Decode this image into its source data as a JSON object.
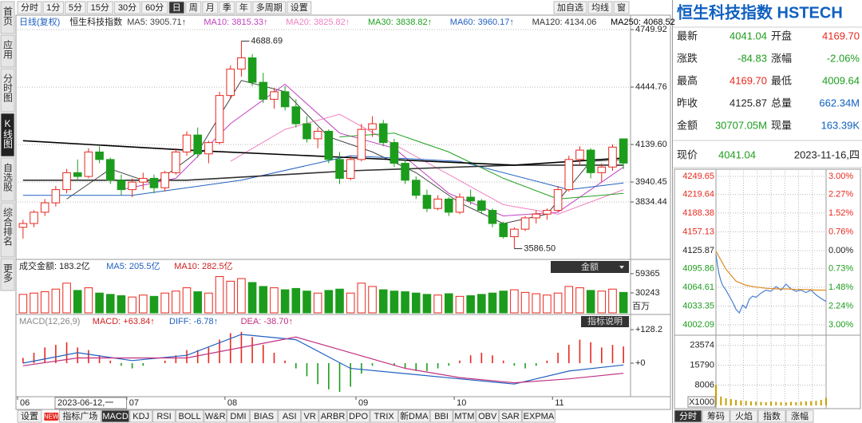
{
  "toolbar": {
    "items": [
      "分时",
      "1分",
      "5分",
      "15分",
      "30分",
      "60分",
      "日",
      "周",
      "月",
      "季",
      "年",
      "多周期",
      "设置"
    ],
    "active": 6,
    "right_items": [
      "加自选",
      "均线",
      "窗"
    ]
  },
  "sidebar": {
    "items": [
      "首页",
      "应用",
      "分时图",
      "K线图",
      "自选股",
      "综合排名",
      "更多"
    ],
    "active": 3
  },
  "cursor_date": "2023-06-12,一",
  "chart_data": [
    {
      "type": "candlestick",
      "subtitle": "日线(复权)",
      "title": "恒生科技指数",
      "categories": [
        "06",
        null,
        null,
        null,
        null,
        null,
        null,
        null,
        null,
        null,
        "07",
        null,
        null,
        null,
        null,
        null,
        null,
        null,
        null,
        "08",
        null,
        null,
        null,
        null,
        null,
        null,
        null,
        null,
        null,
        null,
        null,
        "09",
        null,
        null,
        null,
        null,
        null,
        null,
        null,
        null,
        "10",
        null,
        null,
        null,
        null,
        null,
        null,
        null,
        null,
        "11",
        null,
        null,
        null,
        null,
        null,
        null
      ],
      "open": [
        3700,
        3720,
        3780,
        3830,
        3900,
        3990,
        3970,
        4100,
        4060,
        3950,
        3900,
        3940,
        3960,
        3910,
        3990,
        4100,
        4190,
        4090,
        4150,
        4400,
        4540,
        4600,
        4470,
        4380,
        4420,
        4340,
        4250,
        4170,
        4210,
        4060,
        3960,
        4060,
        4220,
        4250,
        4150,
        4040,
        3950,
        3870,
        3800,
        3850,
        3780,
        3860,
        3840,
        3790,
        3720,
        3650,
        3690,
        3750,
        3770,
        3790,
        3900,
        4060,
        4110,
        3990,
        4020,
        4169.7
      ],
      "high": [
        3740,
        3790,
        3850,
        3920,
        4010,
        4060,
        4120,
        4130,
        4070,
        3980,
        3960,
        3990,
        3980,
        4000,
        4120,
        4210,
        4230,
        4160,
        4420,
        4560,
        4688.69,
        4620,
        4520,
        4440,
        4450,
        4380,
        4290,
        4230,
        4220,
        4100,
        4080,
        4250,
        4290,
        4270,
        4170,
        4060,
        3970,
        3900,
        3870,
        3860,
        3880,
        3900,
        3850,
        3800,
        3730,
        3700,
        3760,
        3790,
        3800,
        3920,
        4080,
        4130,
        4120,
        4040,
        4140,
        4169.7
      ],
      "low": [
        3640,
        3700,
        3760,
        3810,
        3880,
        3950,
        3960,
        4040,
        3930,
        3870,
        3860,
        3900,
        3880,
        3890,
        3980,
        4080,
        4070,
        4040,
        4140,
        4380,
        4500,
        4450,
        4360,
        4330,
        4320,
        4230,
        4150,
        4120,
        4040,
        3930,
        3950,
        4050,
        4180,
        4130,
        4020,
        3930,
        3850,
        3780,
        3790,
        3760,
        3770,
        3820,
        3770,
        3700,
        3640,
        3586.5,
        3680,
        3720,
        3740,
        3780,
        3890,
        4030,
        3960,
        3940,
        4000,
        4009.64
      ],
      "close": [
        3720,
        3780,
        3830,
        3900,
        3990,
        3970,
        4100,
        4060,
        3950,
        3900,
        3940,
        3960,
        3910,
        3990,
        4100,
        4190,
        4090,
        4150,
        4400,
        4540,
        4600,
        4470,
        4380,
        4420,
        4340,
        4250,
        4170,
        4210,
        4060,
        3960,
        4060,
        4220,
        4250,
        4150,
        4040,
        3950,
        3870,
        3800,
        3850,
        3780,
        3860,
        3840,
        3790,
        3720,
        3650,
        3690,
        3750,
        3770,
        3790,
        3900,
        4060,
        4110,
        3990,
        4020,
        4125.87,
        4041.04
      ],
      "max_label": "4688.69",
      "min_label": "3586.50",
      "up_color": "#e8281e",
      "down_color": "#1c9c1c",
      "ylim": [
        3538,
        4780
      ],
      "yticks": [
        4749.92,
        4444.76,
        {
          "value": 4139.6,
          "label": "4139.60"
        },
        3940.45,
        3834.44
      ],
      "grid": true,
      "series": [
        {
          "name": "MA5: 3905.71↑",
          "color": "#404040",
          "x": [
            4,
            8,
            12,
            16,
            20,
            24,
            28,
            32,
            36,
            40,
            44,
            48,
            52,
            55
          ],
          "values": [
            3850,
            4010,
            3930,
            4100,
            4480,
            4420,
            4180,
            4100,
            3990,
            3830,
            3720,
            3770,
            4050,
            4060
          ]
        },
        {
          "name": "MA10: 3815.33↑",
          "color": "#c040c0",
          "x": [
            9,
            14,
            19,
            24,
            29,
            34,
            39,
            44,
            49,
            55
          ],
          "values": [
            3900,
            3960,
            4250,
            4460,
            4200,
            4120,
            3880,
            3760,
            3780,
            4020
          ]
        },
        {
          "name": "MA20: 3825.82↑",
          "color": "#f080c0",
          "x": [
            19,
            24,
            29,
            34,
            39,
            44,
            49,
            55
          ],
          "values": [
            4050,
            4220,
            4300,
            4140,
            3980,
            3820,
            3770,
            3900
          ]
        },
        {
          "name": "MA30: 3838.82↑",
          "color": "#20a020",
          "x": [
            29,
            34,
            39,
            44,
            49,
            55
          ],
          "values": [
            4180,
            4200,
            4100,
            3960,
            3850,
            3880
          ]
        },
        {
          "name": "MA60: 3960.17↑",
          "color": "#2060c0",
          "x": [
            0,
            10,
            20,
            30,
            40,
            50,
            55
          ],
          "values": [
            3870,
            3870,
            3950,
            4080,
            4050,
            3900,
            3935
          ]
        },
        {
          "name": "MA120: 4134.06",
          "color": "#303030",
          "x": [
            0,
            15,
            30,
            45,
            55
          ],
          "values": [
            3950,
            3950,
            4000,
            4030,
            4030
          ]
        },
        {
          "name": "MA250: 4068.52",
          "color": "#000000",
          "x": [
            0,
            15,
            30,
            45,
            55
          ],
          "values": [
            4160,
            4110,
            4070,
            4030,
            4068
          ]
        }
      ]
    },
    {
      "type": "bar",
      "legend": [
        {
          "label": "成交金额: 183.2亿",
          "color": "#222222"
        },
        {
          "label": "MA5: 205.5亿",
          "color": "#2060c0"
        },
        {
          "label": "MA10: 282.5亿",
          "color": "#d02020"
        }
      ],
      "selector": "金额",
      "unit": "百万",
      "values": [
        28000,
        30000,
        32000,
        36000,
        45000,
        34000,
        38000,
        30000,
        28000,
        26000,
        24000,
        27000,
        25000,
        30000,
        33000,
        38000,
        32000,
        30000,
        55000,
        48000,
        52000,
        46000,
        40000,
        38000,
        35000,
        37000,
        33000,
        30000,
        34000,
        36000,
        30000,
        45000,
        40000,
        35000,
        33000,
        32000,
        30000,
        28000,
        27000,
        29000,
        25000,
        26000,
        28000,
        30000,
        33000,
        35000,
        31000,
        29000,
        27000,
        30000,
        40000,
        38000,
        34000,
        33000,
        36000,
        31000
      ],
      "ylim": [
        0,
        75000
      ],
      "yticks": [
        59365,
        30243
      ]
    },
    {
      "type": "macd",
      "title": "MACD(12,26,9)",
      "histogram_label": "MACD: +63.84↑",
      "histogram_color": "#d02020",
      "values": [
        20,
        40,
        60,
        70,
        80,
        60,
        50,
        30,
        10,
        -10,
        -20,
        -10,
        0,
        10,
        30,
        50,
        50,
        60,
        90,
        115,
        120,
        100,
        70,
        40,
        10,
        -20,
        -50,
        -80,
        -100,
        -110,
        -90,
        -40,
        -10,
        0,
        -10,
        -20,
        -30,
        -30,
        -20,
        -10,
        10,
        30,
        40,
        30,
        10,
        -10,
        -20,
        -10,
        10,
        40,
        70,
        90,
        80,
        60,
        70,
        63.84
      ],
      "info_button": "指标说明",
      "ylim": [
        -122,
        168
      ],
      "yticks": [
        {
          "value": 128.2,
          "label": "+128.2"
        },
        {
          "value": 0,
          "label": "+0"
        }
      ],
      "series": [
        {
          "name": "DIFF: -6.78↑",
          "color": "#2060c0",
          "x": [
            0,
            5,
            10,
            15,
            20,
            25,
            30,
            35,
            40,
            45,
            50,
            55
          ],
          "values": [
            0,
            40,
            10,
            30,
            110,
            90,
            -20,
            -40,
            -60,
            -80,
            -30,
            -6.78
          ]
        },
        {
          "name": "DEA: -38.70↑",
          "color": "#c03080",
          "x": [
            0,
            5,
            10,
            15,
            20,
            25,
            30,
            35,
            40,
            45,
            50,
            55
          ],
          "values": [
            -10,
            20,
            20,
            20,
            60,
            100,
            40,
            -20,
            -55,
            -75,
            -60,
            -38.7
          ]
        }
      ]
    },
    {
      "type": "line",
      "xlim": [
        0,
        330
      ],
      "ylim": [
        4002.09,
        4249.65
      ],
      "yticks": [
        4249.65,
        4219.64,
        4188.38,
        4157.13,
        4125.87,
        4095.86,
        4064.61,
        4033.35,
        4002.09
      ],
      "y2lim": [
        -3,
        3
      ],
      "y2ticks": [
        {
          "value": 3,
          "label": "3.00%"
        },
        {
          "value": 2.27,
          "label": "2.27%"
        },
        {
          "value": 1.52,
          "label": "1.52%"
        },
        {
          "value": 0.76,
          "label": "0.76%"
        },
        {
          "value": 0,
          "label": "0.00%"
        },
        {
          "value": -0.73,
          "label": "0.73%"
        },
        {
          "value": -1.48,
          "label": "1.48%"
        },
        {
          "value": -2.24,
          "label": "2.24%"
        },
        {
          "value": -3,
          "label": "3.00%"
        }
      ],
      "grid": true,
      "series": [
        {
          "color": "#4a7fd0",
          "x": [
            0,
            5,
            10,
            15,
            20,
            30,
            40,
            50,
            60,
            70,
            80,
            90,
            100,
            110,
            120,
            135,
            150,
            165,
            180,
            195,
            210,
            225,
            240,
            255,
            270,
            285,
            300,
            315,
            330
          ],
          "values": [
            4120,
            4100,
            4085,
            4075,
            4068,
            4060,
            4050,
            4040,
            4028,
            4022,
            4035,
            4030,
            4045,
            4050,
            4048,
            4055,
            4060,
            4058,
            4066,
            4060,
            4070,
            4062,
            4058,
            4060,
            4056,
            4060,
            4052,
            4046,
            4041.04
          ]
        },
        {
          "color": "#e08a20",
          "x": [
            0,
            30,
            60,
            90,
            120,
            150,
            180,
            210,
            240,
            270,
            300,
            330
          ],
          "values": [
            4125,
            4095,
            4075,
            4068,
            4065,
            4063,
            4062,
            4062,
            4061,
            4061,
            4060,
            4060
          ]
        }
      ]
    },
    {
      "type": "bar",
      "unit": "X1000",
      "color": "#c8a000",
      "xlim": [
        0,
        330
      ],
      "x": [
        0,
        15,
        30,
        45,
        60,
        75,
        90,
        105,
        120,
        135,
        150,
        165,
        180,
        195,
        210,
        225,
        240,
        255,
        270,
        285,
        300,
        315,
        330
      ],
      "values": [
        8000,
        3500,
        2800,
        2500,
        2200,
        2000,
        1800,
        1600,
        1500,
        1400,
        1300,
        1500,
        1400,
        1300,
        1200,
        1400,
        1300,
        1500,
        1600,
        1700,
        1800,
        2200,
        3000
      ],
      "ylim": [
        0,
        26000
      ],
      "yticks": [
        23574,
        15790,
        8006
      ]
    }
  ],
  "quote": {
    "name": "恒生科技指数 HSTECH",
    "rows": [
      [
        "最新",
        "4041.04",
        "开盘",
        "4169.70"
      ],
      [
        "涨跌",
        "-84.83",
        "涨幅",
        "-2.06%"
      ],
      [
        "最高",
        "4169.70",
        "最低",
        "4009.64"
      ],
      [
        "昨收",
        "4125.87",
        "总量",
        "662.34M"
      ],
      [
        "金额",
        "30707.05M",
        "现量",
        "163.39K"
      ]
    ],
    "value_colors": [
      [
        "#1c9c1c",
        "#e8281e"
      ],
      [
        "#1c9c1c",
        "#1c9c1c"
      ],
      [
        "#e8281e",
        "#1c9c1c"
      ],
      [
        "#222222",
        "#1060c0"
      ],
      [
        "#1c9c1c",
        "#1060c0"
      ]
    ],
    "price_label": "现价",
    "price": "4041.04",
    "price_color": "#1c9c1c",
    "date": "2023-11-16,四"
  },
  "bottom_tabs": {
    "items": [
      "设置",
      "指标广场",
      "MACD",
      "KDJ",
      "RSI",
      "BOLL",
      "W&R",
      "DMI",
      "BIAS",
      "ASI",
      "VR",
      "ARBR",
      "DPO",
      "TRIX",
      "新DMA",
      "BBI",
      "MTM",
      "OBV",
      "SAR",
      "EXPMA"
    ],
    "active": 2,
    "badge": "NEW",
    "badge_index": 1
  },
  "right_tabs": {
    "items": [
      "分时",
      "筹码",
      "火焰",
      "指数",
      "涨幅"
    ],
    "active": 0
  }
}
